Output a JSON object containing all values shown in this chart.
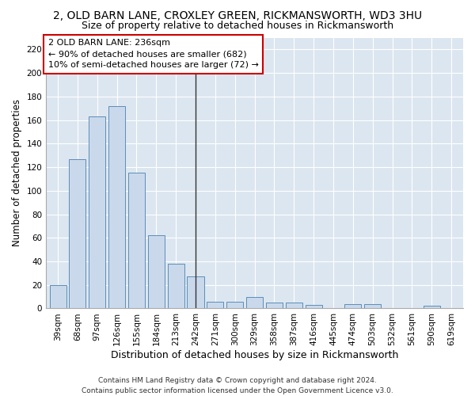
{
  "title": "2, OLD BARN LANE, CROXLEY GREEN, RICKMANSWORTH, WD3 3HU",
  "subtitle": "Size of property relative to detached houses in Rickmansworth",
  "xlabel": "Distribution of detached houses by size in Rickmansworth",
  "ylabel": "Number of detached properties",
  "categories": [
    "39sqm",
    "68sqm",
    "97sqm",
    "126sqm",
    "155sqm",
    "184sqm",
    "213sqm",
    "242sqm",
    "271sqm",
    "300sqm",
    "329sqm",
    "358sqm",
    "387sqm",
    "416sqm",
    "445sqm",
    "474sqm",
    "503sqm",
    "532sqm",
    "561sqm",
    "590sqm",
    "619sqm"
  ],
  "values": [
    20,
    127,
    163,
    172,
    115,
    62,
    38,
    27,
    6,
    6,
    10,
    5,
    5,
    3,
    0,
    4,
    4,
    0,
    0,
    2,
    0
  ],
  "bar_color": "#c9d9eb",
  "bar_edge_color": "#5b8db8",
  "vline_x": 7,
  "vline_color": "#333333",
  "annotation_line1": "2 OLD BARN LANE: 236sqm",
  "annotation_line2": "← 90% of detached houses are smaller (682)",
  "annotation_line3": "10% of semi-detached houses are larger (72) →",
  "annotation_box_color": "#ffffff",
  "annotation_box_edge": "#cc0000",
  "ylim": [
    0,
    230
  ],
  "yticks": [
    0,
    20,
    40,
    60,
    80,
    100,
    120,
    140,
    160,
    180,
    200,
    220
  ],
  "bg_color": "#dce6f0",
  "footer": "Contains HM Land Registry data © Crown copyright and database right 2024.\nContains public sector information licensed under the Open Government Licence v3.0.",
  "title_fontsize": 10,
  "subtitle_fontsize": 9,
  "xlabel_fontsize": 9,
  "ylabel_fontsize": 8.5,
  "tick_fontsize": 7.5,
  "annotation_fontsize": 8,
  "footer_fontsize": 6.5
}
